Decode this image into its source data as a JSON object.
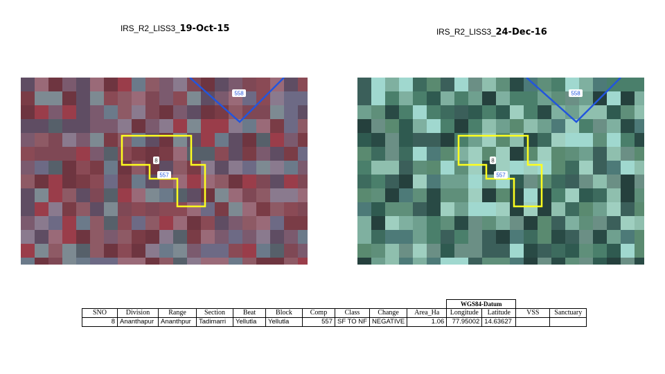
{
  "panels": [
    {
      "title_prefix": "IRS_R2_LISS3_",
      "title_date": "19-Oct-15",
      "labels": {
        "top": "558",
        "middle": "8",
        "bottom": "557"
      },
      "palette": [
        "#7a3c46",
        "#6e3540",
        "#8a4a55",
        "#7b5a6e",
        "#6d6a85",
        "#8e5a65",
        "#5f4d63",
        "#9a6a78",
        "#6b7a8a",
        "#7f4855",
        "#8a7a8e",
        "#56606a",
        "#9a3d4a",
        "#7d8a92"
      ]
    },
    {
      "title_prefix": "IRS_R2_LISS3_",
      "title_date": "24-Dec-16",
      "labels": {
        "top": "558",
        "middle": "8",
        "bottom": "557"
      },
      "palette": [
        "#3d6b5e",
        "#2f5a50",
        "#4a7f6b",
        "#5f8f7a",
        "#6fa08f",
        "#294a45",
        "#7fb0a0",
        "#3b5f5a",
        "#8fbfae",
        "#4d7a78",
        "#6b8f85",
        "#9fcfc0",
        "#25403d",
        "#5a8a70",
        "#a0d8cf"
      ]
    }
  ],
  "colors": {
    "boundary": "#ffff1e",
    "lines": "#2255dd",
    "label_bg": "#ffffff"
  },
  "table": {
    "datum_label": "WGS84-Datum",
    "headers": [
      "SNO",
      "Division",
      "Range",
      "Section",
      "Beat",
      "Block",
      "Comp",
      "Class",
      "Change",
      "Area_Ha",
      "Longitude",
      "Latitude",
      "VSS",
      "Sanctuary"
    ],
    "row": {
      "sno": "8",
      "division": "Ananthapur",
      "range": "Ananthpur",
      "section": "Tadimarri",
      "beat": "Yellutla",
      "block": "Yellutla",
      "comp": "557",
      "class": "SF TO NF",
      "change": "NEGATIVE",
      "area_ha": "1.06",
      "longitude": "77.95002",
      "latitude": "14.63627",
      "vss": "",
      "sanctuary": ""
    }
  }
}
